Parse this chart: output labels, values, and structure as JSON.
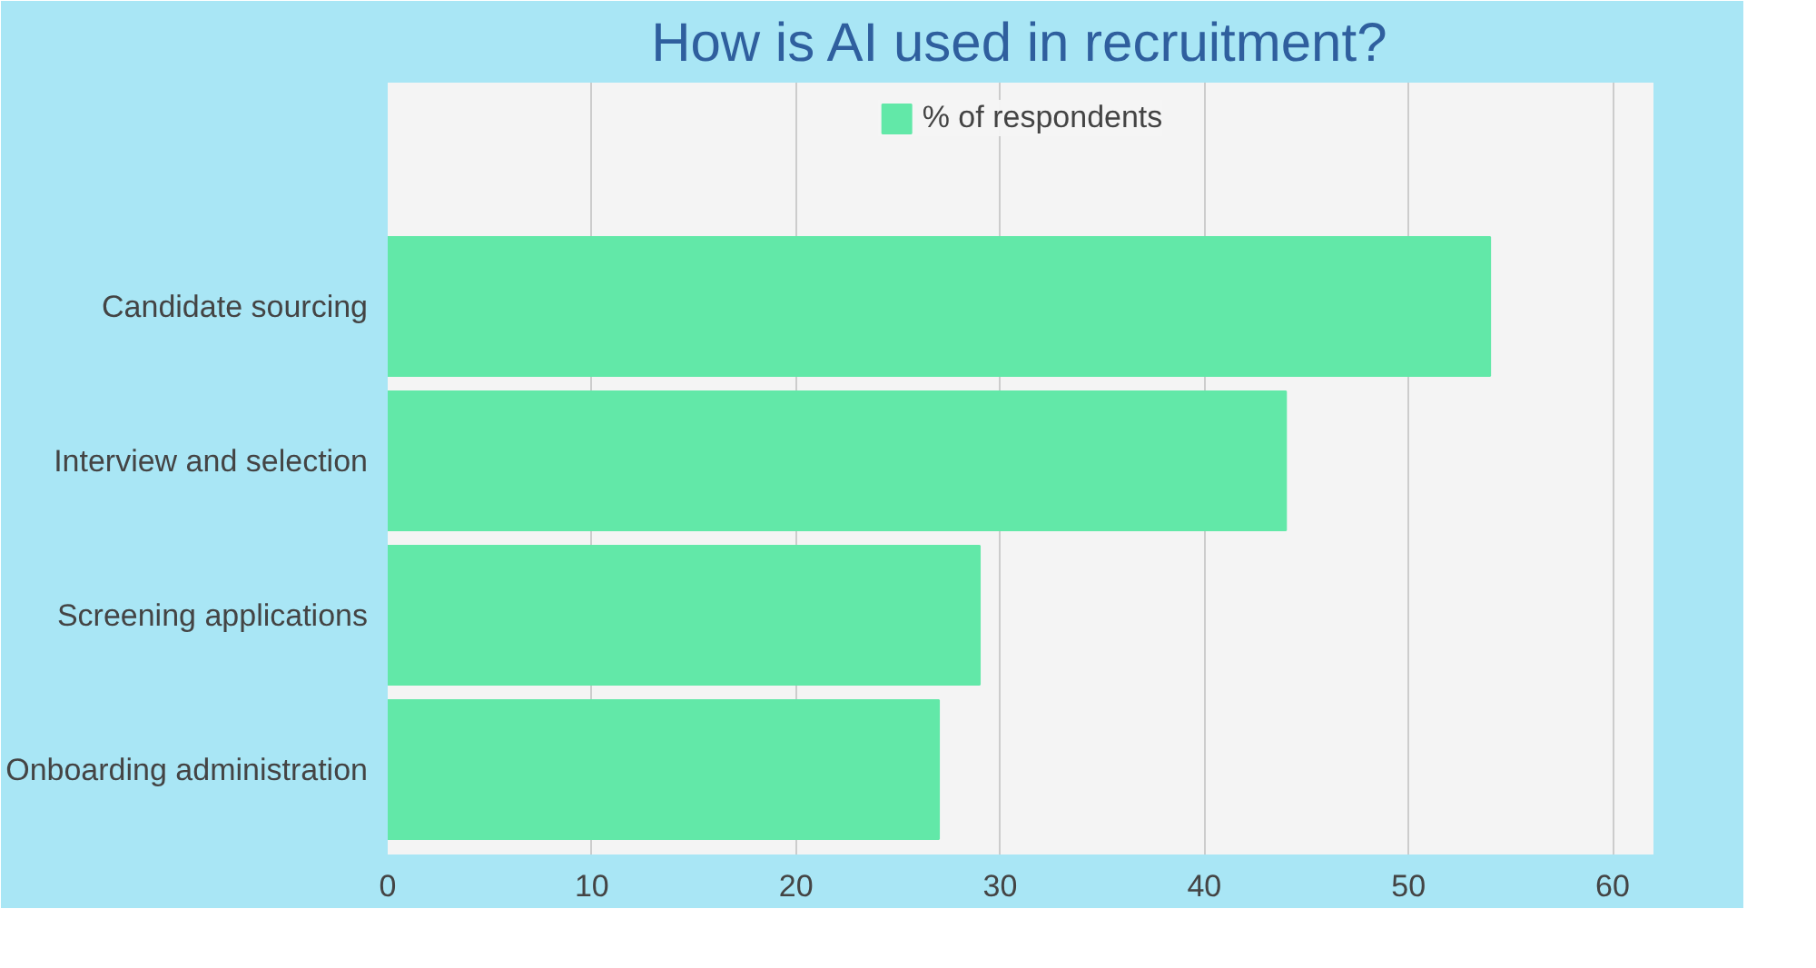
{
  "chart_data": {
    "type": "bar",
    "orientation": "horizontal",
    "title": "How is AI used in recruitment?",
    "categories": [
      "Candidate sourcing",
      "Interview and selection",
      "Screening applications",
      "Onboarding administration"
    ],
    "series": [
      {
        "name": "% of respondents",
        "color": "#62e8a8",
        "values": [
          54,
          44,
          29,
          27
        ]
      }
    ],
    "xlim": [
      0,
      62
    ],
    "xticks": [
      0,
      10,
      20,
      30,
      40,
      50,
      60
    ],
    "grid": "x",
    "legend": "top"
  }
}
